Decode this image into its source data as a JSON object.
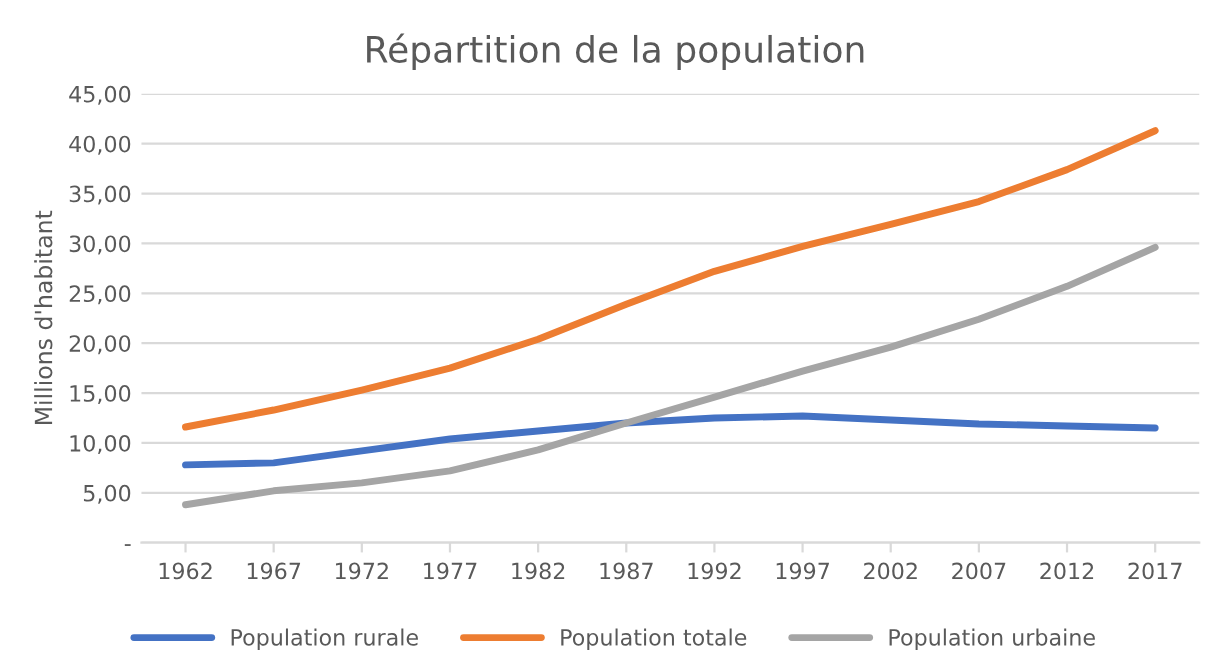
{
  "chart_data": {
    "type": "line",
    "title": "Répartition de la population",
    "ylabel": "Millions d'habitant",
    "categories": [
      "1962",
      "1967",
      "1972",
      "1977",
      "1982",
      "1987",
      "1992",
      "1997",
      "2002",
      "2007",
      "2012",
      "2017"
    ],
    "series": [
      {
        "name": "Population rurale",
        "color": "#4472c4",
        "values": [
          7.8,
          8.0,
          9.2,
          10.4,
          11.2,
          12.0,
          12.5,
          12.7,
          12.3,
          11.9,
          11.7,
          11.5
        ]
      },
      {
        "name": "Population totale",
        "color": "#ed7d31",
        "values": [
          11.6,
          13.3,
          15.3,
          17.5,
          20.4,
          23.9,
          27.2,
          29.7,
          31.9,
          34.2,
          37.4,
          41.3
        ]
      },
      {
        "name": "Population urbaine",
        "color": "#a5a5a5",
        "values": [
          3.8,
          5.2,
          6.0,
          7.2,
          9.3,
          12.0,
          14.6,
          17.2,
          19.6,
          22.4,
          25.7,
          29.6
        ]
      }
    ],
    "ylim": [
      0,
      45
    ],
    "yticks": [
      {
        "value": 0,
        "label": "-"
      },
      {
        "value": 5,
        "label": "5,00"
      },
      {
        "value": 10,
        "label": "10,00"
      },
      {
        "value": 15,
        "label": "15,00"
      },
      {
        "value": 20,
        "label": "20,00"
      },
      {
        "value": 25,
        "label": "25,00"
      },
      {
        "value": 30,
        "label": "30,00"
      },
      {
        "value": 35,
        "label": "35,00"
      },
      {
        "value": 40,
        "label": "40,00"
      },
      {
        "value": 45,
        "label": "45,00"
      }
    ],
    "grid": "y",
    "legend": "bottom",
    "marker": "none",
    "line_style": "solid"
  }
}
